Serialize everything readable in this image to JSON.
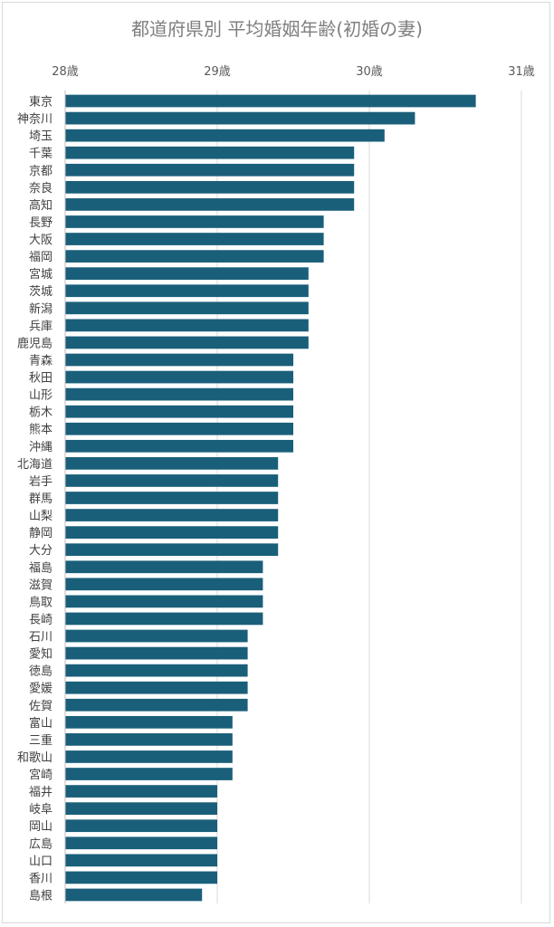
{
  "chart_data": {
    "type": "bar",
    "orientation": "horizontal",
    "title": "都道府県別 平均婚姻年齢(初婚の妻)",
    "xlabel": "",
    "ylabel": "",
    "xlim": [
      28,
      31
    ],
    "x_ticks": [
      28,
      29,
      30,
      31
    ],
    "x_tick_labels": [
      "28歳",
      "29歳",
      "30歳",
      "31歳"
    ],
    "x_axis_position": "top",
    "grid": true,
    "legend": "none",
    "bar_color": "#1a5f7a",
    "categories": [
      "東京",
      "神奈川",
      "埼玉",
      "千葉",
      "京都",
      "奈良",
      "高知",
      "長野",
      "大阪",
      "福岡",
      "宮城",
      "茨城",
      "新潟",
      "兵庫",
      "鹿児島",
      "青森",
      "秋田",
      "山形",
      "栃木",
      "熊本",
      "沖縄",
      "北海道",
      "岩手",
      "群馬",
      "山梨",
      "静岡",
      "大分",
      "福島",
      "滋賀",
      "鳥取",
      "長崎",
      "石川",
      "愛知",
      "徳島",
      "愛媛",
      "佐賀",
      "富山",
      "三重",
      "和歌山",
      "宮崎",
      "福井",
      "岐阜",
      "岡山",
      "広島",
      "山口",
      "香川",
      "島根"
    ],
    "values": [
      30.7,
      30.3,
      30.1,
      29.9,
      29.9,
      29.9,
      29.9,
      29.7,
      29.7,
      29.7,
      29.6,
      29.6,
      29.6,
      29.6,
      29.6,
      29.5,
      29.5,
      29.5,
      29.5,
      29.5,
      29.5,
      29.4,
      29.4,
      29.4,
      29.4,
      29.4,
      29.4,
      29.3,
      29.3,
      29.3,
      29.3,
      29.2,
      29.2,
      29.2,
      29.2,
      29.2,
      29.1,
      29.1,
      29.1,
      29.1,
      29.0,
      29.0,
      29.0,
      29.0,
      29.0,
      29.0,
      28.9
    ]
  }
}
